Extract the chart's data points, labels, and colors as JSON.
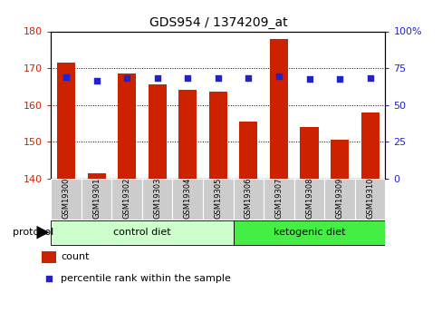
{
  "title": "GDS954 / 1374209_at",
  "samples": [
    "GSM19300",
    "GSM19301",
    "GSM19302",
    "GSM19303",
    "GSM19304",
    "GSM19305",
    "GSM19306",
    "GSM19307",
    "GSM19308",
    "GSM19309",
    "GSM19310"
  ],
  "counts": [
    171.5,
    141.5,
    168.5,
    165.5,
    164.0,
    163.5,
    155.5,
    178.0,
    154.0,
    150.5,
    158.0
  ],
  "percentile_ranks": [
    69.0,
    66.5,
    68.5,
    68.5,
    68.5,
    68.5,
    68.0,
    69.5,
    67.5,
    67.5,
    68.0
  ],
  "ylim_left": [
    140,
    180
  ],
  "ylim_right": [
    0,
    100
  ],
  "yticks_left": [
    140,
    150,
    160,
    170,
    180
  ],
  "yticks_right": [
    0,
    25,
    50,
    75,
    100
  ],
  "bar_color": "#cc2200",
  "dot_color": "#2222cc",
  "grid_color": "#000000",
  "bar_width": 0.6,
  "protocol_label": "protocol",
  "group1_label": "control diet",
  "group2_label": "ketogenic diet",
  "group1_indices": [
    0,
    1,
    2,
    3,
    4,
    5
  ],
  "group2_indices": [
    6,
    7,
    8,
    9,
    10
  ],
  "legend_count_label": "count",
  "legend_percentile_label": "percentile rank within the sample",
  "bg_xticklabels": "#cccccc",
  "bg_group1": "#ccffcc",
  "bg_group2": "#44ee44",
  "title_fontsize": 10
}
